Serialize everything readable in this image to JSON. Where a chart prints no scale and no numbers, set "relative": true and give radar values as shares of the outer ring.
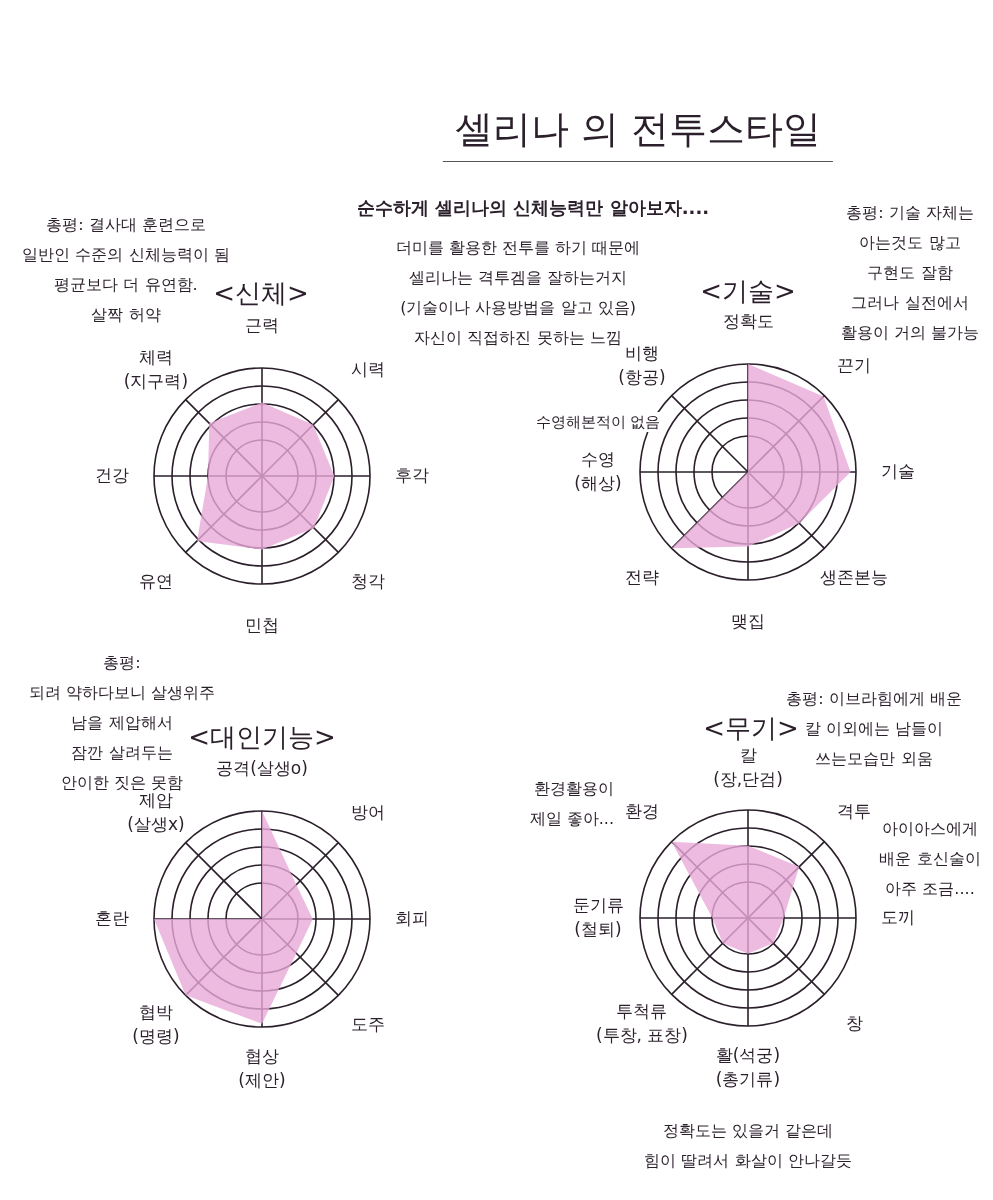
{
  "chart_data": [
    {
      "type": "other",
      "title": "셀리나 의 전투스타일",
      "subtitle": "순수하게 셀리나의 신체능력만 알아보자....",
      "annotations": [
        "더미를 활용한 전투를 하기 때문에\n셀리나는 격투겜을 잘하는거지\n(기술이나 사용방법을 알고 있음)\n자신이 직접하진 못하는 느낌"
      ]
    },
    {
      "type": "radar",
      "title": "<신체>",
      "relative": true,
      "grid": true,
      "categories": [
        "근력",
        "시력",
        "후각",
        "청각",
        "민첩",
        "유연",
        "건강",
        "체력\n(지구력)"
      ],
      "series": [
        {
          "color": "#e8a9d8",
          "values": [
            0.68,
            0.67,
            0.67,
            0.68,
            0.68,
            0.85,
            0.5,
            0.69
          ]
        }
      ],
      "annotations": [
        "총평: 결사대 훈련으로\n일반인 수준의 신체능력이 됨\n평균보다 더 유연함.\n살짝 허약"
      ]
    },
    {
      "type": "radar",
      "title": "<기술>",
      "relative": true,
      "grid": true,
      "categories": [
        "정확도",
        "끈기",
        "기술",
        "생존본능",
        "맺집",
        "전략",
        "수영\n(해상)",
        "비행\n(항공)"
      ],
      "series": [
        {
          "color": "#e8a9d8",
          "values": [
            1,
            0.99,
            0.95,
            0.67,
            0.69,
            1,
            0,
            0
          ]
        }
      ],
      "annotations": [
        "총평: 기술 자체는\n아는것도 많고\n구현도 잘함\n그러나 실전에서\n활용이 거의 불가능",
        "수영해본적이 없음"
      ]
    },
    {
      "type": "radar",
      "title": "<대인기능>",
      "relative": true,
      "grid": true,
      "categories": [
        "공격(살생o)",
        "방어",
        "회피",
        "도주",
        "협상\n(제안)",
        "협박\n(명령)",
        "혼란",
        "제압\n(살생x)"
      ],
      "series": [
        {
          "color": "#e8a9d8",
          "values": [
            1,
            0.45,
            0.47,
            0.45,
            0.97,
            1,
            1,
            0
          ]
        }
      ],
      "annotations": [
        "총평:\n되려 약하다보니 살생위주\n남을 제압해서\n잠깐 살려두는\n안이한 짓은 못함"
      ]
    },
    {
      "type": "radar",
      "title": "<무기>",
      "relative": true,
      "grid": true,
      "categories": [
        "칼\n(장,단검)",
        "격투",
        "도끼",
        "창",
        "활(석궁)\n(총기류)",
        "투척류\n(투창, 표창)",
        "둔기류\n(철퇴)",
        "환경"
      ],
      "series": [
        {
          "color": "#e8a9d8",
          "values": [
            0.67,
            0.67,
            0.33,
            0.33,
            0.33,
            0.33,
            0.33,
            1
          ]
        }
      ],
      "annotations": [
        "총평: 이브라힘에게 배운\n칼 이외에는 남들이\n쓰는모습만 외움",
        "환경활용이\n제일 좋아...",
        "아이아스에게\n배운 호신술이\n아주 조금....",
        "정확도는 있을거 같은데\n힘이 딸려서 화살이 안나갈듯"
      ]
    }
  ]
}
